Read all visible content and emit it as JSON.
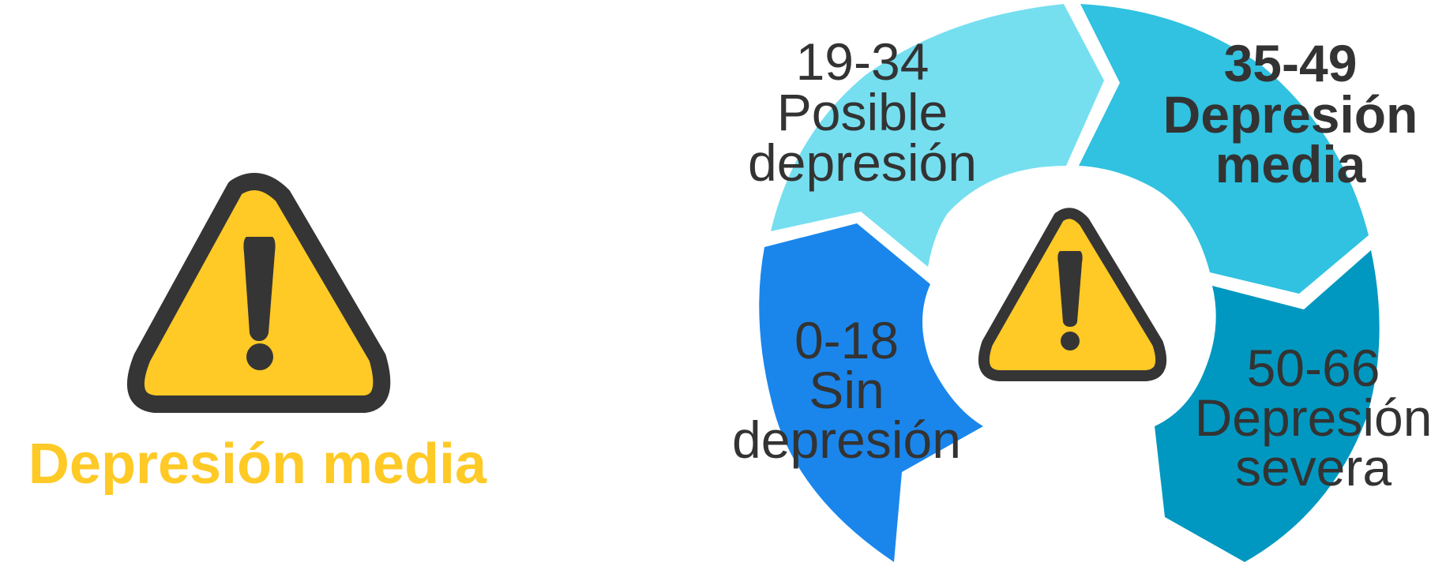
{
  "result": {
    "label": "Depresión media",
    "color": "#FFC926",
    "icon": "warning-icon"
  },
  "warning_icon": {
    "fill": "#FFC926",
    "stroke": "#353535"
  },
  "ring": {
    "center_icon": "warning-icon",
    "segments": [
      {
        "id": "sin-depresion",
        "range": "0-18",
        "lines": [
          "Sin",
          "depresión"
        ],
        "color": "#1A86EC",
        "highlighted": false
      },
      {
        "id": "posible-depresion",
        "range": "19-34",
        "lines": [
          "Posible",
          "depresión"
        ],
        "color": "#75DFF0",
        "highlighted": false
      },
      {
        "id": "depresion-media",
        "range": "35-49",
        "lines": [
          "Depresión",
          "media"
        ],
        "color": "#30C2E0",
        "highlighted": true
      },
      {
        "id": "depresion-severa",
        "range": "50-66",
        "lines": [
          "Depresión",
          "severa"
        ],
        "color": "#0098C0",
        "highlighted": false
      }
    ]
  }
}
